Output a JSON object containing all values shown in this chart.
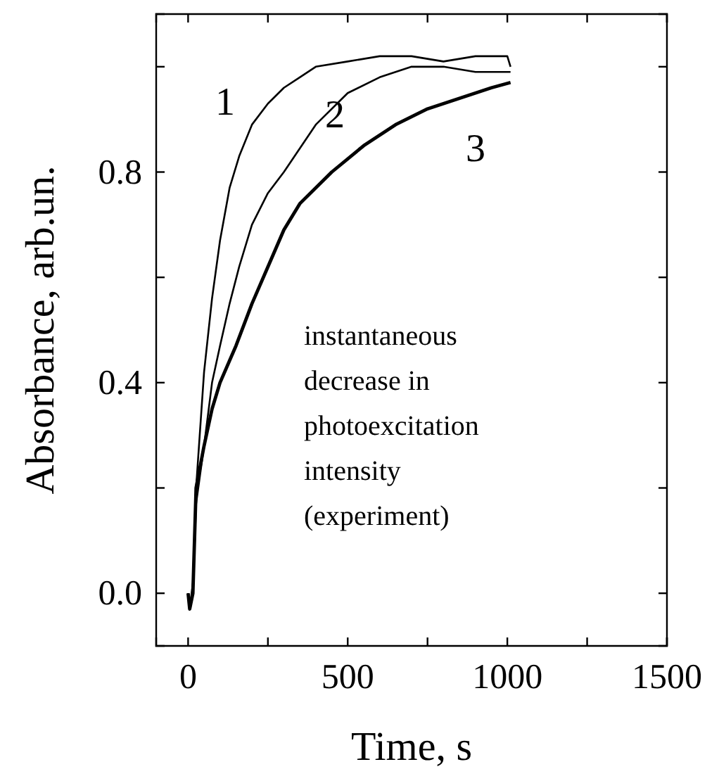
{
  "chart_data": {
    "type": "line",
    "xlabel": "Time, s",
    "ylabel": "Absorbance, arb.un.",
    "xlim": [
      -100,
      1500
    ],
    "ylim": [
      -0.1,
      1.1
    ],
    "xticks": [
      0,
      {
        "value": 250,
        "label": null
      },
      500,
      {
        "value": 750,
        "label": null
      },
      1000,
      {
        "value": 1250,
        "label": null
      },
      1500
    ],
    "yticks": [
      {
        "value": 0,
        "label": "0.0"
      },
      {
        "value": 0.2,
        "label": null
      },
      0.4,
      {
        "value": 0.6,
        "label": null
      },
      0.8,
      {
        "value": 1.0,
        "label": null
      }
    ],
    "grid": false,
    "legend": false,
    "marker": "none",
    "line_style": "solid",
    "series": [
      {
        "name": "1",
        "color": "#000000",
        "x": [
          0,
          5,
          15,
          25,
          50,
          75,
          100,
          130,
          160,
          200,
          250,
          300,
          350,
          400,
          500,
          600,
          700,
          800,
          900,
          1000,
          1010
        ],
        "values": [
          0.0,
          -0.03,
          0.02,
          0.2,
          0.42,
          0.56,
          0.67,
          0.77,
          0.83,
          0.89,
          0.93,
          0.96,
          0.98,
          1.0,
          1.01,
          1.02,
          1.02,
          1.01,
          1.02,
          1.02,
          1.0
        ]
      },
      {
        "name": "2",
        "color": "#000000",
        "x": [
          0,
          5,
          15,
          25,
          50,
          75,
          100,
          130,
          160,
          200,
          250,
          300,
          400,
          500,
          600,
          700,
          800,
          900,
          1000,
          1010
        ],
        "values": [
          0.0,
          -0.03,
          0.0,
          0.17,
          0.28,
          0.4,
          0.47,
          0.55,
          0.62,
          0.7,
          0.76,
          0.8,
          0.89,
          0.95,
          0.98,
          1.0,
          1.0,
          0.99,
          0.99,
          0.99
        ]
      },
      {
        "name": "3",
        "color": "#000000",
        "x": [
          0,
          5,
          15,
          25,
          50,
          75,
          100,
          150,
          200,
          250,
          300,
          350,
          450,
          550,
          650,
          750,
          850,
          950,
          1010
        ],
        "values": [
          0.0,
          -0.03,
          0.0,
          0.2,
          0.28,
          0.35,
          0.4,
          0.47,
          0.55,
          0.62,
          0.69,
          0.74,
          0.8,
          0.85,
          0.89,
          0.92,
          0.94,
          0.96,
          0.97
        ]
      }
    ],
    "annotations": [
      "instantaneous decrease in photoexcitation intensity (experiment)"
    ]
  }
}
